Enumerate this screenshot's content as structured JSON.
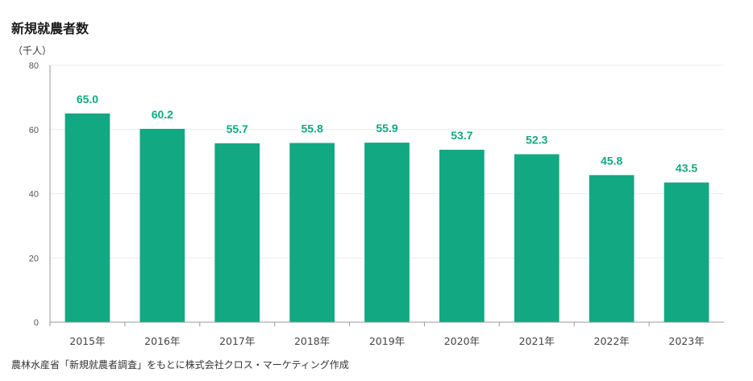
{
  "chart_data": {
    "type": "bar",
    "title": "新規就農者数",
    "unit_label": "（千人）",
    "categories": [
      "2015年",
      "2016年",
      "2017年",
      "2018年",
      "2019年",
      "2020年",
      "2021年",
      "2022年",
      "2023年"
    ],
    "values": [
      65.0,
      60.2,
      55.7,
      55.8,
      55.9,
      53.7,
      52.3,
      45.8,
      43.5
    ],
    "data_labels": [
      "65.0",
      "60.2",
      "55.7",
      "55.8",
      "55.9",
      "53.7",
      "52.3",
      "45.8",
      "43.5"
    ],
    "ylim": [
      0,
      80
    ],
    "yticks": [
      0,
      20,
      40,
      60,
      80
    ],
    "grid": true,
    "legend": "none",
    "bar_color": "#12a882",
    "label_color": "#12a882",
    "source": "農林水産省「新規就農者調査」をもとに株式会社クロス・マーケティング作成"
  }
}
